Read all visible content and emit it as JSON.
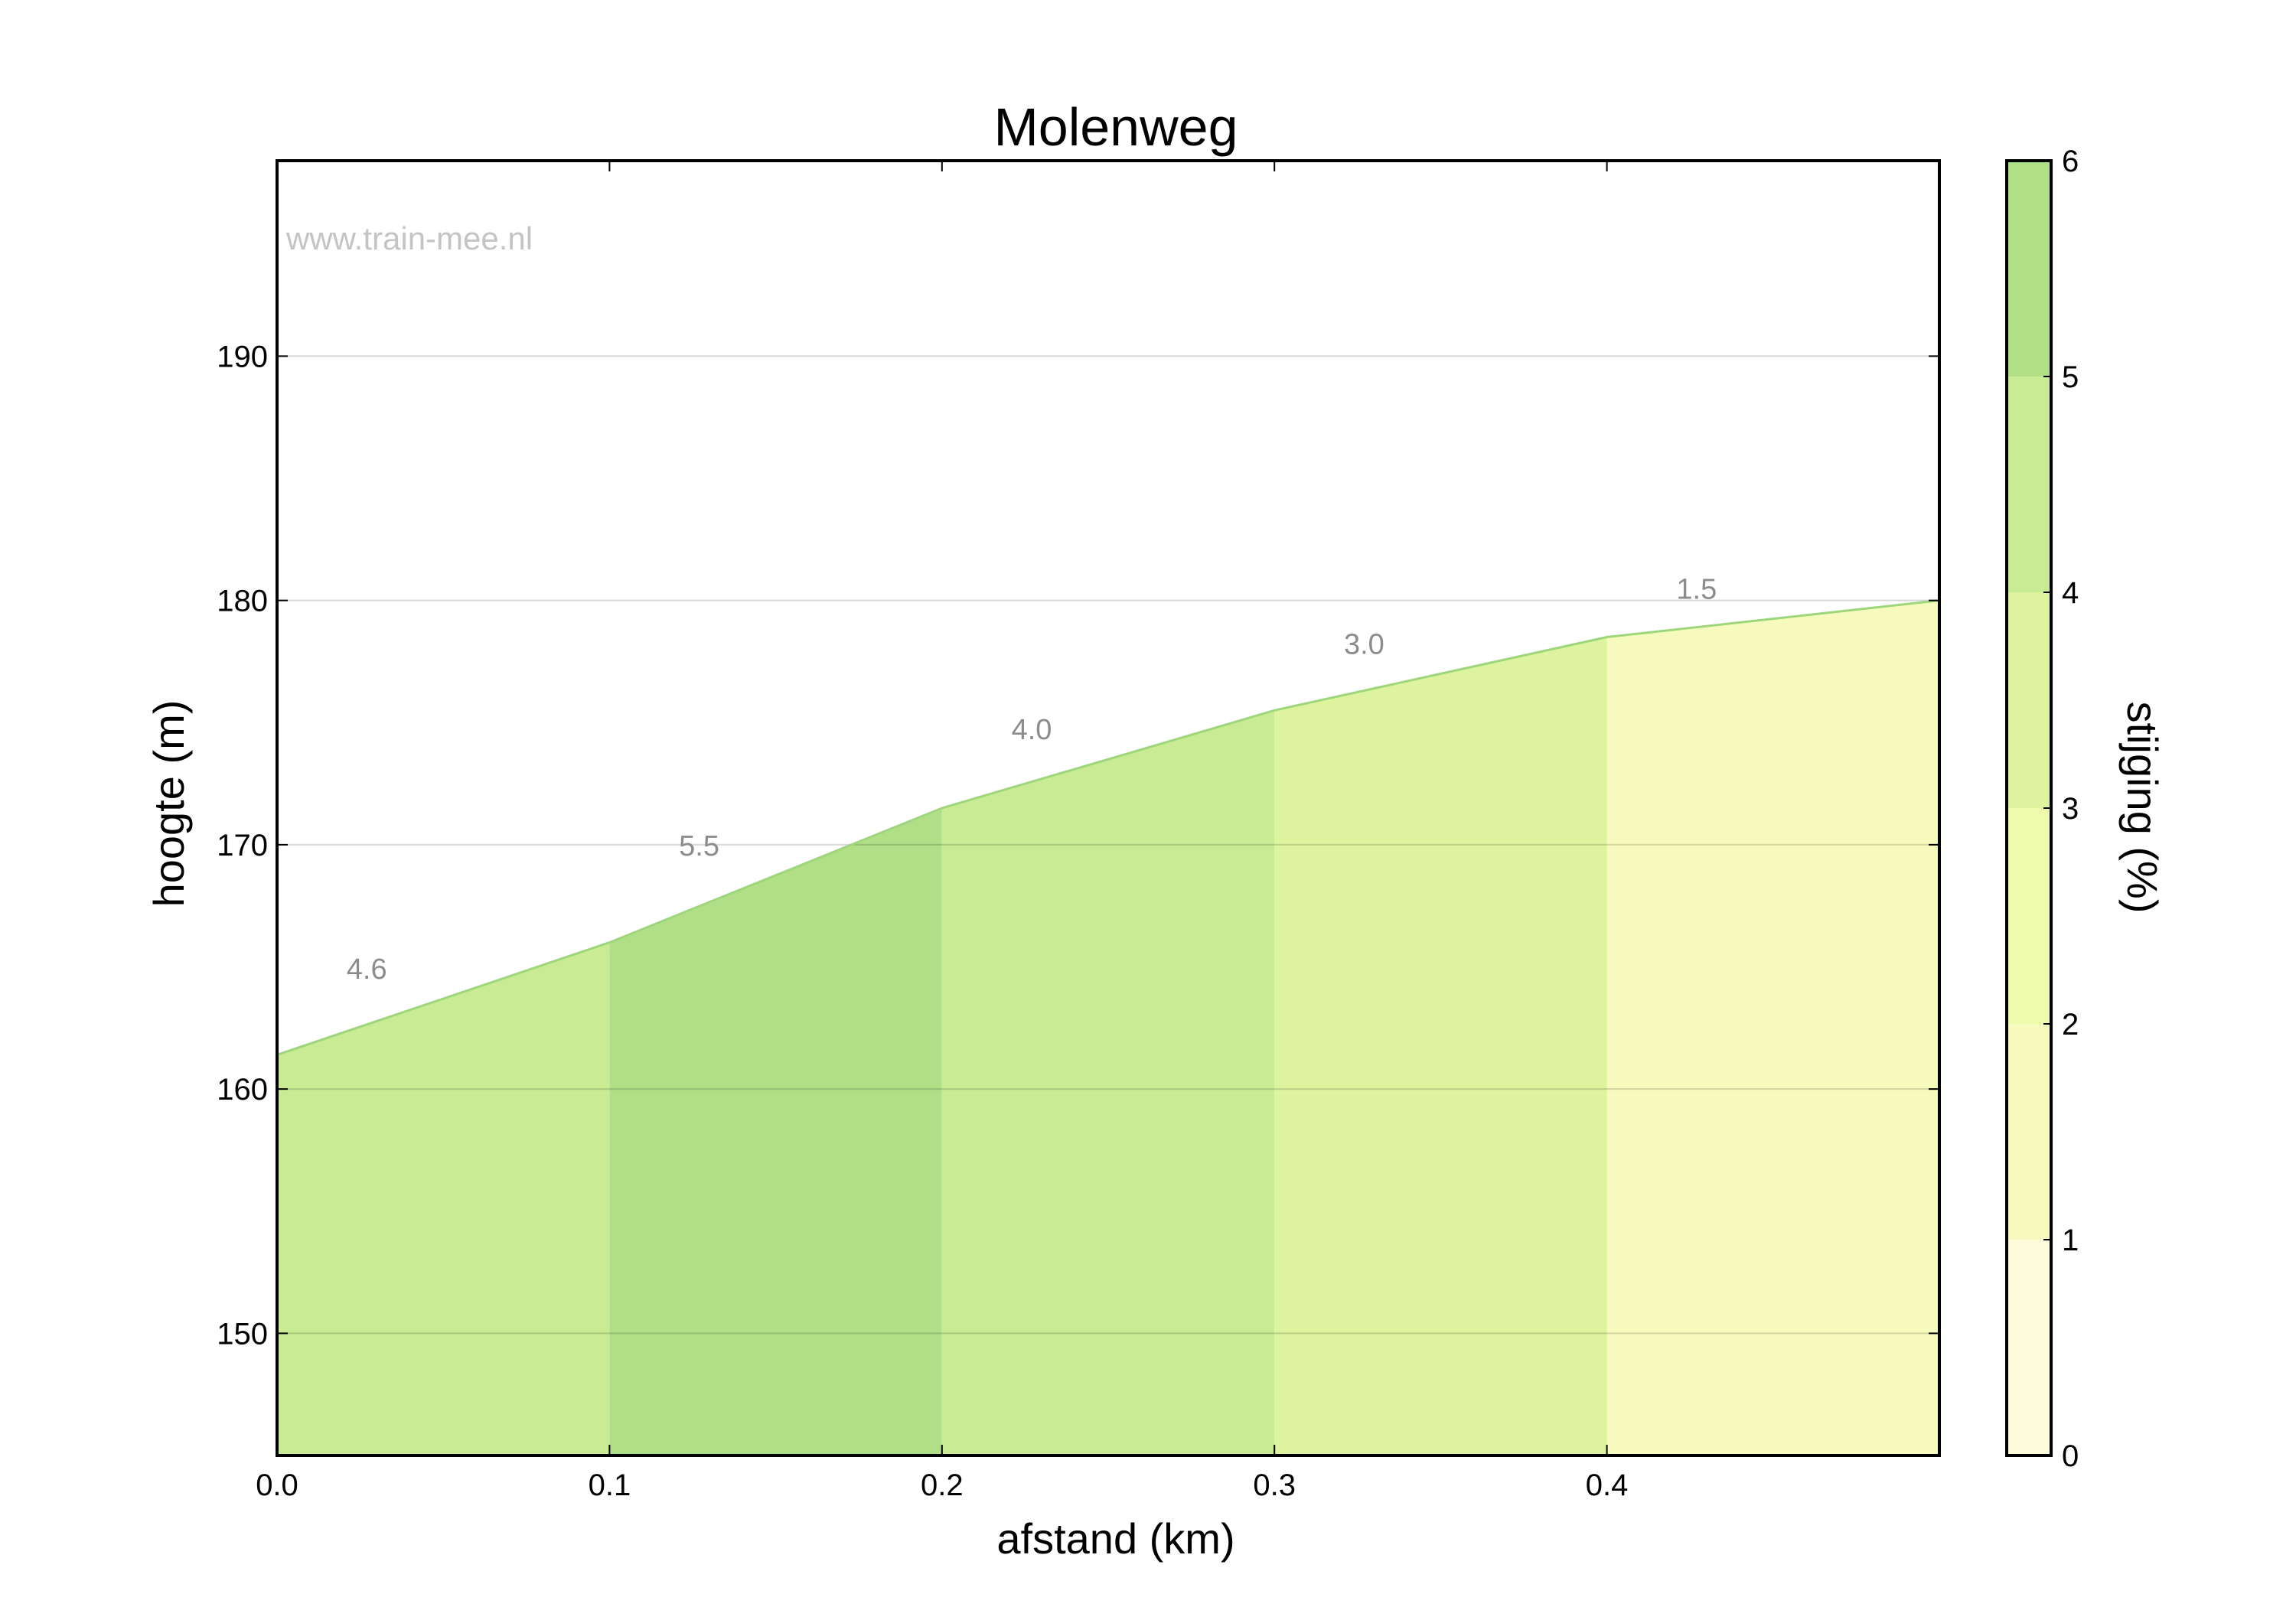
{
  "chart_data": {
    "type": "area",
    "title": "Molenweg",
    "xlabel": "afstand (km)",
    "ylabel": "hoogte (m)",
    "watermark": "www.train-mee.nl",
    "xlim": [
      0.0,
      0.5
    ],
    "ylim": [
      145,
      198
    ],
    "x_ticks": [
      0.0,
      0.1,
      0.2,
      0.3,
      0.4
    ],
    "x_tick_labels": [
      "0.0",
      "0.1",
      "0.2",
      "0.3",
      "0.4"
    ],
    "y_ticks": [
      150,
      160,
      170,
      180,
      190
    ],
    "y_tick_labels": [
      "150",
      "160",
      "170",
      "180",
      "190"
    ],
    "grid": "horizontal",
    "profile": {
      "x": [
        0.0,
        0.1,
        0.2,
        0.3,
        0.4,
        0.5
      ],
      "y": [
        161.4,
        166.0,
        171.5,
        175.5,
        178.5,
        180.0
      ]
    },
    "segments": [
      {
        "x_start": 0.0,
        "x_end": 0.1,
        "label": "4.6",
        "value": 4.6
      },
      {
        "x_start": 0.1,
        "x_end": 0.2,
        "label": "5.5",
        "value": 5.5
      },
      {
        "x_start": 0.2,
        "x_end": 0.3,
        "label": "4.0",
        "value": 4.0
      },
      {
        "x_start": 0.3,
        "x_end": 0.4,
        "label": "3.0",
        "value": 3.0
      },
      {
        "x_start": 0.4,
        "x_end": 0.5,
        "label": "1.5",
        "value": 1.5
      }
    ],
    "line_color": "#9ed67a",
    "colorbar": {
      "label": "stijging (%)",
      "range": [
        0,
        6
      ],
      "ticks": [
        0,
        1,
        2,
        3,
        4,
        5,
        6
      ],
      "tick_labels": [
        "0",
        "1",
        "2",
        "3",
        "4",
        "5",
        "6"
      ],
      "bands": [
        {
          "from": 0,
          "to": 1,
          "color": "#fdfbdc"
        },
        {
          "from": 1,
          "to": 2,
          "color": "#f6fbbd"
        },
        {
          "from": 2,
          "to": 3,
          "color": "#eefaac"
        },
        {
          "from": 3,
          "to": 4,
          "color": "#ddf39d"
        },
        {
          "from": 4,
          "to": 5,
          "color": "#c8eb93"
        },
        {
          "from": 5,
          "to": 6,
          "color": "#b0df88"
        }
      ]
    }
  }
}
